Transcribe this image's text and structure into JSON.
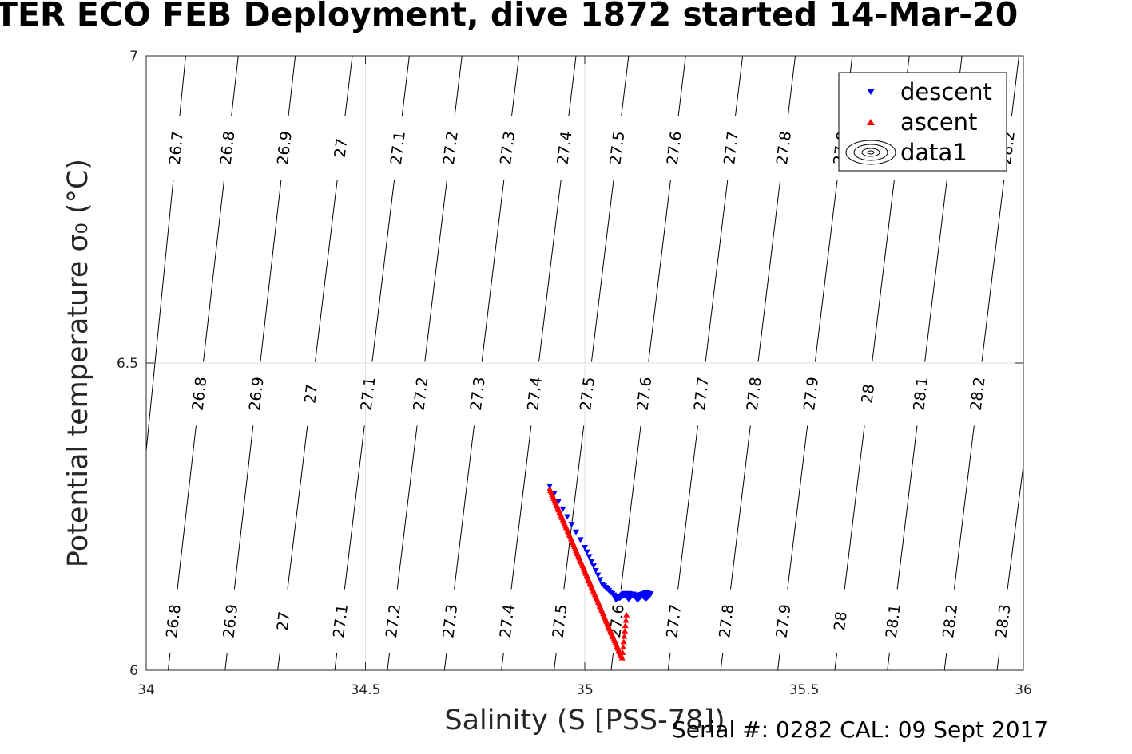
{
  "title": "TER ECO FEB Deployment, dive 1872 started 14-Mar-20",
  "footer": "Serial #: 0282  CAL: 09 Sept 2017",
  "chart_data": {
    "type": "scatter",
    "title": "TER ECO FEB Deployment, dive 1872 started 14-Mar-20",
    "xlabel": "Salinity (S [PSS-78])",
    "ylabel": "Potential temperature σ₀ (°C)",
    "xlim": [
      34,
      36
    ],
    "ylim": [
      6,
      7
    ],
    "xticks": [
      "34",
      "34.5",
      "35",
      "35.5",
      "36"
    ],
    "yticks": [
      "6",
      "6.5",
      "7"
    ],
    "grid": true,
    "legend_position": "top-right",
    "legend": [
      "descent",
      "ascent",
      "data1"
    ],
    "series": [
      {
        "name": "descent",
        "marker": "down-triangle",
        "color": "#0000ff",
        "x": [
          34.92,
          35.0,
          35.04,
          35.07,
          35.08,
          35.09,
          35.1,
          35.11,
          35.12,
          35.13,
          35.14,
          35.15,
          35.14,
          35.12,
          35.1,
          35.08,
          35.07
        ],
        "y": [
          6.3,
          6.2,
          6.14,
          6.12,
          6.118,
          6.125,
          6.116,
          6.124,
          6.115,
          6.122,
          6.117,
          6.124,
          6.126,
          6.121,
          6.125,
          6.119,
          6.116
        ]
      },
      {
        "name": "ascent",
        "marker": "up-triangle",
        "color": "#ff0000",
        "x": [
          34.92,
          34.935,
          34.95,
          34.965,
          34.98,
          34.995,
          35.01,
          35.025,
          35.04,
          35.055,
          35.07,
          35.085,
          35.095
        ],
        "y": [
          6.295,
          6.27,
          6.245,
          6.22,
          6.195,
          6.17,
          6.145,
          6.12,
          6.095,
          6.07,
          6.045,
          6.02,
          6.09
        ]
      }
    ],
    "density_contours": [
      {
        "label": "26.7",
        "s_at_7": 34.09,
        "s_at_6": 33.95
      },
      {
        "label": "26.8",
        "s_at_7": 34.21,
        "s_at_6": 34.05
      },
      {
        "label": "26.9",
        "s_at_7": 34.34,
        "s_at_6": 34.18
      },
      {
        "label": "27",
        "s_at_7": 34.47,
        "s_at_6": 34.3
      },
      {
        "label": "27.1",
        "s_at_7": 34.6,
        "s_at_6": 34.43
      },
      {
        "label": "27.2",
        "s_at_7": 34.72,
        "s_at_6": 34.55
      },
      {
        "label": "27.3",
        "s_at_7": 34.85,
        "s_at_6": 34.68
      },
      {
        "label": "27.4",
        "s_at_7": 34.98,
        "s_at_6": 34.81
      },
      {
        "label": "27.5",
        "s_at_7": 35.1,
        "s_at_6": 34.93
      },
      {
        "label": "27.6",
        "s_at_7": 35.23,
        "s_at_6": 35.06
      },
      {
        "label": "27.7",
        "s_at_7": 35.36,
        "s_at_6": 35.19
      },
      {
        "label": "27.8",
        "s_at_7": 35.48,
        "s_at_6": 35.31
      },
      {
        "label": "27.9",
        "s_at_7": 35.61,
        "s_at_6": 35.44
      },
      {
        "label": "28",
        "s_at_7": 35.74,
        "s_at_6": 35.57
      },
      {
        "label": "28.1",
        "s_at_7": 35.86,
        "s_at_6": 35.69
      },
      {
        "label": "28.2",
        "s_at_7": 35.99,
        "s_at_6": 35.82
      },
      {
        "label": "28.3",
        "s_at_7": 36.12,
        "s_at_6": 35.94
      }
    ],
    "contour_label_rows": [
      {
        "t": 6.85,
        "labels": [
          "26.7",
          "26.8",
          "26.9",
          "27",
          "27.1",
          "27.2",
          "27.3",
          "27.4",
          "27.5",
          "27.6",
          "27.7",
          "27.8",
          "27.9",
          "28",
          "28.1",
          "28.2"
        ]
      },
      {
        "t": 6.45,
        "labels": [
          "26.8",
          "26.9",
          "27",
          "27.1",
          "27.2",
          "27.3",
          "27.4",
          "27.5",
          "27.6",
          "27.7",
          "27.8",
          "27.9",
          "28",
          "28.1",
          "28.2"
        ]
      },
      {
        "t": 6.08,
        "labels": [
          "26.8",
          "26.9",
          "27",
          "27.1",
          "27.2",
          "27.3",
          "27.4",
          "27.5",
          "27.6",
          "27.7",
          "27.8",
          "27.9",
          "28",
          "28.1",
          "28.2",
          "28.3"
        ]
      }
    ]
  }
}
